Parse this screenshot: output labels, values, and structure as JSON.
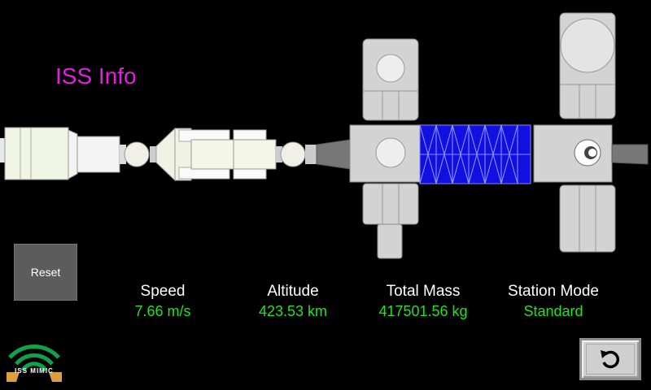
{
  "title": "ISS Info",
  "reset_label": "Reset",
  "stats": [
    {
      "label": "Speed",
      "value": "7.66 m/s"
    },
    {
      "label": "Altitude",
      "value": "423.53 km"
    },
    {
      "label": "Total Mass",
      "value": "417501.56 kg"
    },
    {
      "label": "Station Mode",
      "value": "Standard"
    }
  ],
  "logo_text": "ISS MIMIC",
  "icons": {
    "back": "undo-arrow-icon",
    "logo": "wifi-signal-icon"
  },
  "colors": {
    "title": "#e020e0",
    "value": "#22e022",
    "module": "#d6d6d6",
    "solar_array": "#1010e0"
  }
}
